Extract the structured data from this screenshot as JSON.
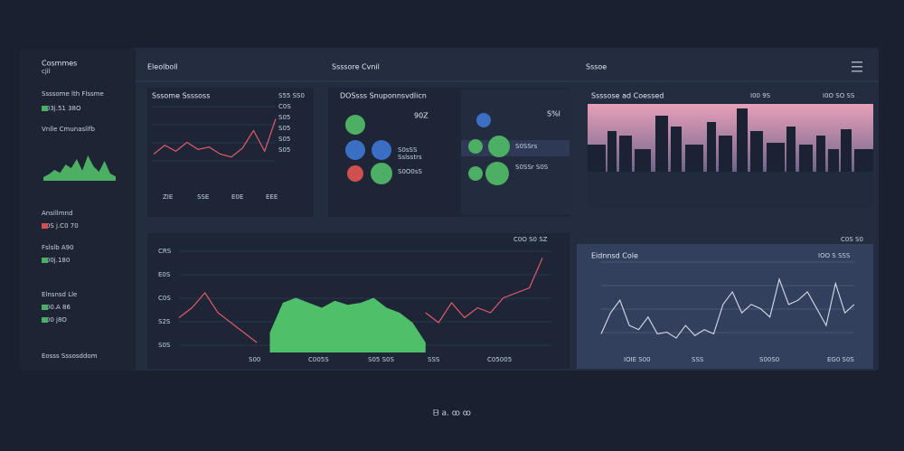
{
  "sidebar": {
    "title": "Cosmmes",
    "subtitle": "cjil",
    "items": [
      "Ssssome lth Flssme",
      "C03j.51 38O",
      "Vnlle Cmunasllfb",
      "Ansillmnd",
      "C0S j.C0 70",
      "Fslslb A90",
      "C00j.180",
      "Elnsnsd Lle",
      "C00.A 86",
      "C00 j8O",
      "Eosss Sssosddom"
    ],
    "chart": {
      "ylim": [
        0,
        100
      ],
      "values": [
        10,
        18,
        30,
        22,
        45,
        35,
        60,
        28,
        70,
        40,
        25,
        55,
        20,
        12
      ]
    }
  },
  "topbar": {
    "tabs": [
      "Eleolboll",
      "Ssssore Cvnil",
      "Sssoe"
    ]
  },
  "line_panel": {
    "title": "Sssome Ssssoss",
    "side_labels": [
      "S55 SS0",
      "C0S",
      "S05",
      "S05",
      "S05",
      "S05"
    ],
    "x_labels": [
      "ZIE",
      "SSE",
      "E0E",
      "EEE"
    ],
    "ylim": [
      0,
      100
    ],
    "values": [
      30,
      45,
      35,
      50,
      38,
      42,
      30,
      25,
      40,
      70,
      35,
      90
    ]
  },
  "icon_panel": {
    "title": "DOSsss Snuponnsvdlicn",
    "value": "90Z",
    "labels": [
      "S0sSS",
      "Sslsstrs",
      "S0O0sS",
      "S%l",
      "S0SSrs",
      "S0SSr S0S"
    ]
  },
  "city_panel": {
    "title": "Ssssose ad Coessed",
    "tags": [
      "I00 9S",
      "I0O SO SS"
    ]
  },
  "main_chart": {
    "header": "C0O S0 SZ",
    "y_labels": [
      "CRS",
      "E0S",
      "C0S",
      "S2S",
      "S0S"
    ],
    "x_labels": [
      "S00",
      "C005S",
      "S05 S0S",
      "SSS",
      "C05005"
    ],
    "ylim": [
      0,
      100
    ],
    "line": [
      35,
      45,
      60,
      40,
      30,
      20,
      10,
      null,
      null,
      null,
      null,
      null,
      null,
      null,
      null,
      null,
      null,
      null,
      null,
      40,
      30,
      50,
      35,
      45,
      40,
      55,
      60,
      65,
      95
    ],
    "area": [
      null,
      null,
      null,
      null,
      null,
      null,
      null,
      20,
      50,
      55,
      50,
      45,
      52,
      48,
      50,
      55,
      45,
      40,
      30,
      10,
      null,
      null,
      null,
      null,
      null,
      null,
      null,
      null,
      null
    ]
  },
  "right_chart": {
    "header": "C0S S0",
    "title": "Eidnnsd Cole",
    "value": "IOO S SSS",
    "x_labels": [
      "IOIE S00",
      "SSS",
      "S00S0",
      "EG0 S0S"
    ],
    "ylim": [
      0,
      100
    ],
    "values": [
      20,
      45,
      60,
      30,
      25,
      40,
      20,
      22,
      15,
      30,
      18,
      25,
      20,
      55,
      70,
      45,
      55,
      50,
      40,
      85,
      55,
      60,
      70,
      50,
      30,
      80,
      45,
      55
    ]
  },
  "footer": "ᗷ a. ꝏ ꝏ"
}
